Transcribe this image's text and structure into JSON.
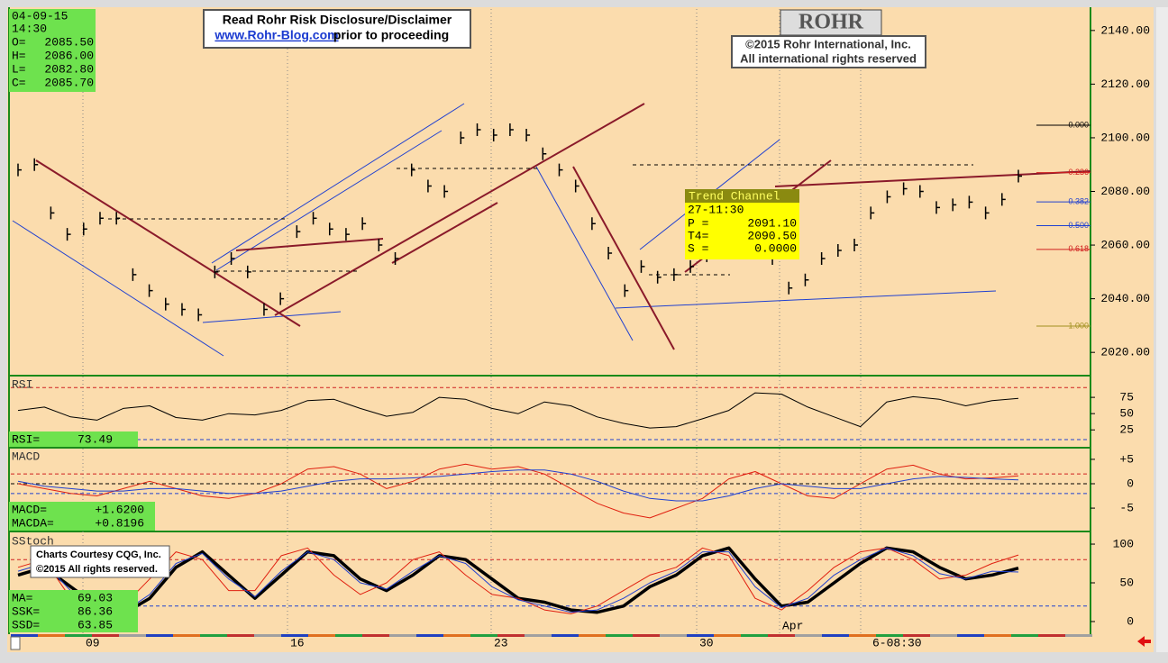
{
  "info": {
    "date": "04-09-15",
    "time": "14:30",
    "ohlc": [
      {
        "label": "O=",
        "value": "2085.50"
      },
      {
        "label": "H=",
        "value": "2086.00"
      },
      {
        "label": "L=",
        "value": "2082.80"
      },
      {
        "label": "C=",
        "value": "2085.70"
      }
    ]
  },
  "disclaimer": {
    "line1": "Read Rohr Risk Disclosure/Disclaimer",
    "link": "www.Rohr-Blog.com",
    "line2": "prior to proceeding"
  },
  "logo": "ROHR",
  "copyright": {
    "line1": "©2015 Rohr International, Inc.",
    "line2": "All international rights reserved"
  },
  "courtesy": {
    "line1": "Charts Courtesy CQG, Inc.",
    "line2": "©2015 All rights reserved."
  },
  "trend_channel": {
    "title": "Trend Channel",
    "time": "27-11:30",
    "rows": [
      {
        "label": "P =",
        "value": "2091.10"
      },
      {
        "label": "T4=",
        "value": "2090.50"
      },
      {
        "label": "S =",
        "value": "0.0000"
      }
    ]
  },
  "fib_levels": [
    {
      "value": 0,
      "label": "0.000",
      "color": "#000000"
    },
    {
      "value": 0.236,
      "label": "0.236",
      "color": "#d02020"
    },
    {
      "value": 0.382,
      "label": "0.382",
      "color": "#2040d0"
    },
    {
      "value": 0.5,
      "label": "0.500",
      "color": "#2040d0"
    },
    {
      "value": 0.618,
      "label": "0.618",
      "color": "#d02020"
    },
    {
      "value": 1,
      "label": "1.000",
      "color": "#a09020"
    }
  ],
  "time_axis": [
    "09",
    "16",
    "23",
    "30",
    "Apr",
    "6-08:30"
  ],
  "chart_data": [
    {
      "type": "price",
      "color": "#000000",
      "ylim": [
        2012,
        2148
      ],
      "yticks": [
        {
          "value": 2140,
          "label": "2140.00"
        },
        {
          "value": 2120,
          "label": "2120.00"
        },
        {
          "value": 2100,
          "label": "2100.00"
        },
        {
          "value": 2080,
          "label": "2080.00"
        },
        {
          "value": 2060,
          "label": "2060.00"
        },
        {
          "value": 2040,
          "label": "2040.00"
        },
        {
          "value": 2020,
          "label": "2020.00"
        }
      ],
      "values": [
        2088,
        2090,
        2072,
        2064,
        2066,
        2070,
        2070,
        2049,
        2043,
        2038,
        2036,
        2034,
        2050,
        2055,
        2050,
        2036,
        2040,
        2065,
        2070,
        2066,
        2064,
        2068,
        2060,
        2055,
        2088,
        2082,
        2080,
        2100,
        2103,
        2101,
        2103,
        2101,
        2094,
        2088,
        2082,
        2068,
        2057,
        2043,
        2052,
        2048,
        2049,
        2052,
        2056,
        2060,
        2065,
        2062,
        2055,
        2044,
        2047,
        2055,
        2058,
        2060,
        2072,
        2078,
        2081,
        2080,
        2074,
        2075,
        2076,
        2072,
        2077,
        2085.7
      ]
    },
    {
      "type": "line",
      "title": "RSI",
      "ylim": [
        -1,
        107
      ],
      "yticks": [
        75,
        50,
        25
      ],
      "levels": [
        {
          "value": 90,
          "color": "#d02020"
        },
        {
          "value": 10,
          "color": "#2040d0"
        }
      ],
      "readouts": [
        {
          "label": "RSI=",
          "value": "73.49"
        }
      ],
      "series": [
        {
          "color": "#000000",
          "width": 1,
          "values": [
            55,
            60,
            45,
            40,
            58,
            62,
            44,
            40,
            50,
            48,
            55,
            70,
            72,
            58,
            46,
            52,
            75,
            72,
            58,
            50,
            68,
            62,
            45,
            35,
            28,
            30,
            42,
            55,
            82,
            80,
            60,
            45,
            30,
            68,
            76,
            72,
            62,
            70,
            73.5
          ]
        }
      ]
    },
    {
      "type": "line",
      "title": "MACD",
      "ylim": [
        -9.6,
        7.2
      ],
      "yticks": [
        {
          "value": 5,
          "label": "+5"
        },
        0,
        -5
      ],
      "levels": [
        {
          "value": 2,
          "color": "#d02020"
        },
        {
          "value": 0,
          "color": "#000000"
        },
        {
          "value": -2,
          "color": "#2040d0"
        }
      ],
      "readouts": [
        {
          "label": "MACD=",
          "value": "+1.6200"
        },
        {
          "label": "MACDA=",
          "value": "+0.8196"
        }
      ],
      "series": [
        {
          "color": "#e02010",
          "width": 1,
          "values": [
            0,
            -1,
            -2,
            -2.5,
            -1,
            0.5,
            -1,
            -2.5,
            -3,
            -2,
            0,
            3,
            3.5,
            2,
            -1,
            0.5,
            3,
            4,
            3,
            3.5,
            2,
            -1,
            -4,
            -6,
            -7,
            -5,
            -3,
            1,
            2.5,
            0,
            -2.5,
            -3,
            0,
            3,
            3.8,
            2,
            1,
            1.2,
            1.6
          ]
        },
        {
          "color": "#2040d0",
          "width": 1,
          "values": [
            0.5,
            -0.5,
            -1,
            -1.5,
            -1.5,
            -1,
            -1,
            -1.5,
            -2,
            -2,
            -1.5,
            -0.5,
            0.5,
            1,
            1,
            1.2,
            1.5,
            2,
            2.5,
            2.8,
            2.8,
            2,
            0.5,
            -1.5,
            -3,
            -3.5,
            -3.5,
            -2.5,
            -1,
            0,
            -0.5,
            -1,
            -1,
            0,
            1,
            1.5,
            1.3,
            1,
            0.8
          ]
        }
      ]
    },
    {
      "type": "line",
      "title": "SStoch",
      "ylim": [
        -14,
        114
      ],
      "yticks": [
        100,
        50,
        0
      ],
      "levels": [
        {
          "value": 80,
          "color": "#d02020"
        },
        {
          "value": 20,
          "color": "#2040d0"
        }
      ],
      "readouts": [
        {
          "label": "MA=",
          "value": "69.03"
        },
        {
          "label": "SSK=",
          "value": "86.36"
        },
        {
          "label": "SSD=",
          "value": "63.85"
        }
      ],
      "series": [
        {
          "color": "#000000",
          "width": 3.5,
          "values": [
            60,
            70,
            45,
            20,
            10,
            30,
            70,
            90,
            60,
            30,
            60,
            90,
            85,
            55,
            40,
            60,
            85,
            80,
            55,
            30,
            25,
            15,
            12,
            20,
            45,
            60,
            85,
            95,
            55,
            20,
            25,
            50,
            75,
            95,
            90,
            70,
            55,
            60,
            69
          ]
        },
        {
          "color": "#e02010",
          "width": 1,
          "values": [
            70,
            80,
            30,
            15,
            20,
            55,
            90,
            80,
            40,
            40,
            85,
            95,
            60,
            35,
            50,
            80,
            90,
            60,
            35,
            30,
            15,
            10,
            20,
            40,
            60,
            70,
            95,
            85,
            30,
            15,
            40,
            70,
            90,
            95,
            80,
            55,
            60,
            75,
            86
          ]
        },
        {
          "color": "#2040d0",
          "width": 1,
          "values": [
            65,
            75,
            40,
            18,
            12,
            35,
            75,
            88,
            55,
            32,
            65,
            90,
            80,
            50,
            42,
            65,
            85,
            75,
            45,
            28,
            20,
            12,
            15,
            30,
            50,
            65,
            90,
            90,
            45,
            18,
            30,
            60,
            80,
            95,
            85,
            62,
            55,
            65,
            64
          ]
        }
      ]
    }
  ]
}
